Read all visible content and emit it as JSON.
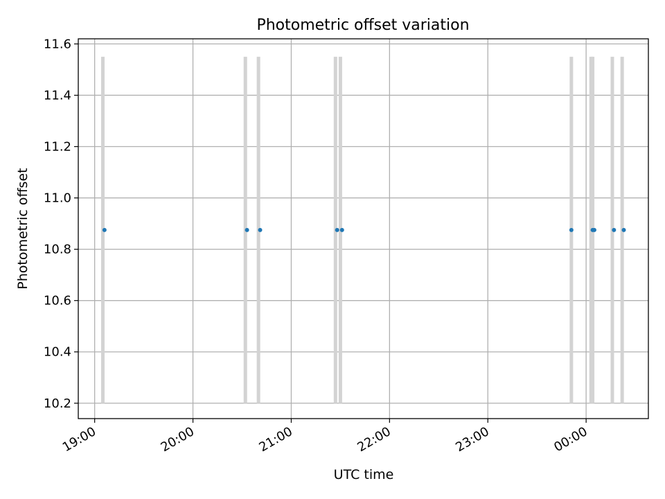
{
  "chart_data": {
    "type": "scatter",
    "title": "Photometric offset variation",
    "xlabel": "UTC time",
    "ylabel": "Photometric offset",
    "x_axis_type": "time",
    "x_range": [
      "18:50",
      "00:38"
    ],
    "x_ticks": [
      "19:00",
      "20:00",
      "21:00",
      "22:00",
      "23:00",
      "00:00"
    ],
    "ylim": [
      10.14,
      11.62
    ],
    "y_ticks": [
      10.2,
      10.4,
      10.6,
      10.8,
      11.0,
      11.2,
      11.4,
      11.6
    ],
    "grid": true,
    "point_color": "#1f77b4",
    "band_color": "#d3d3d3",
    "band_range": [
      10.2,
      11.55
    ],
    "series": [
      {
        "x": [
          "19:06",
          "20:33",
          "20:41",
          "21:28",
          "21:31",
          "23:51",
          "00:04",
          "00:05",
          "00:17",
          "00:23"
        ],
        "y": [
          10.875,
          10.875,
          10.875,
          10.875,
          10.875,
          10.875,
          10.875,
          10.875,
          10.875,
          10.875
        ]
      }
    ],
    "bands_x": [
      "19:05",
      "20:32",
      "20:40",
      "21:27",
      "21:30",
      "23:51",
      "00:03",
      "00:04",
      "00:16",
      "00:22"
    ]
  }
}
